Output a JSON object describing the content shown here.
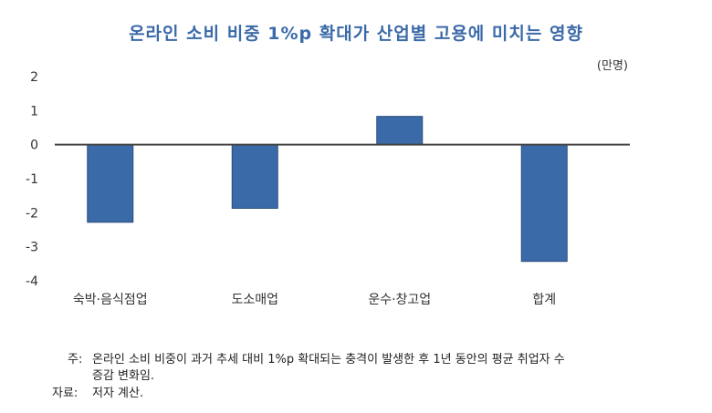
{
  "chart_data": {
    "type": "bar",
    "title": "온라인 소비 비중 1%p 확대가 산업별 고용에 미치는 영향",
    "unit": "(만명)",
    "categories": [
      "숙박·음식점업",
      "도소매업",
      "운수·창고업",
      "합계"
    ],
    "values": [
      -2.28,
      -1.87,
      0.83,
      -3.43
    ],
    "ylim": [
      -4,
      2
    ],
    "yticks": [
      "2",
      "1",
      "0",
      "-1",
      "-2",
      "-3",
      "-4"
    ],
    "grid": false,
    "bar_color": "#3b6aa8"
  },
  "notes": {
    "note_label": "주:",
    "note_line1": "온라인 소비 비중이 과거 추세 대비 1%p 확대되는 충격이 발생한 후 1년 동안의 평균 취업자 수",
    "note_line2": "증감 변화임.",
    "source_label": "자료:",
    "source_text": "저자 계산."
  }
}
